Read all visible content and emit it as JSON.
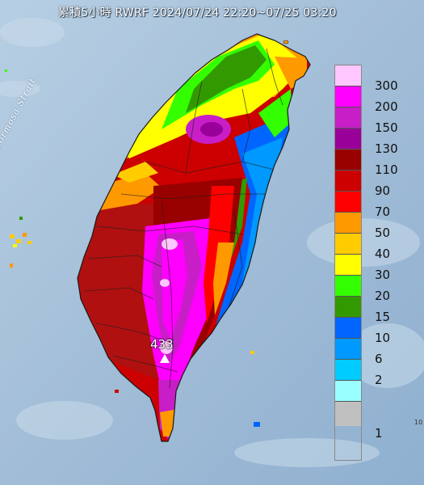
{
  "title": "累積5小時 RWRF 2024/07/24 22:20~07/25 03:20",
  "strait_label": "Formosa Strait",
  "max_value": "433",
  "corner_text": "10",
  "colors": {
    "sea": "#a9c4dc",
    "land_base": "#cf2a1a"
  },
  "legend": {
    "items": [
      {
        "label": "300",
        "color": "#ffc6ff"
      },
      {
        "label": "200",
        "color": "#ff00ff"
      },
      {
        "label": "150",
        "color": "#c71ec7"
      },
      {
        "label": "130",
        "color": "#990099"
      },
      {
        "label": "110",
        "color": "#990000"
      },
      {
        "label": "90",
        "color": "#cc0000"
      },
      {
        "label": "70",
        "color": "#ff0000"
      },
      {
        "label": "50",
        "color": "#ff9900"
      },
      {
        "label": "40",
        "color": "#ffcc00"
      },
      {
        "label": "30",
        "color": "#ffff00"
      },
      {
        "label": "20",
        "color": "#33ff00"
      },
      {
        "label": "15",
        "color": "#339900"
      },
      {
        "label": "10",
        "color": "#0066ff"
      },
      {
        "label": "6",
        "color": "#0099ff"
      },
      {
        "label": "2",
        "color": "#00ccff"
      },
      {
        "label": "1",
        "color": "#99ffff"
      },
      {
        "label": "",
        "color": "#c0c0c0"
      }
    ]
  }
}
